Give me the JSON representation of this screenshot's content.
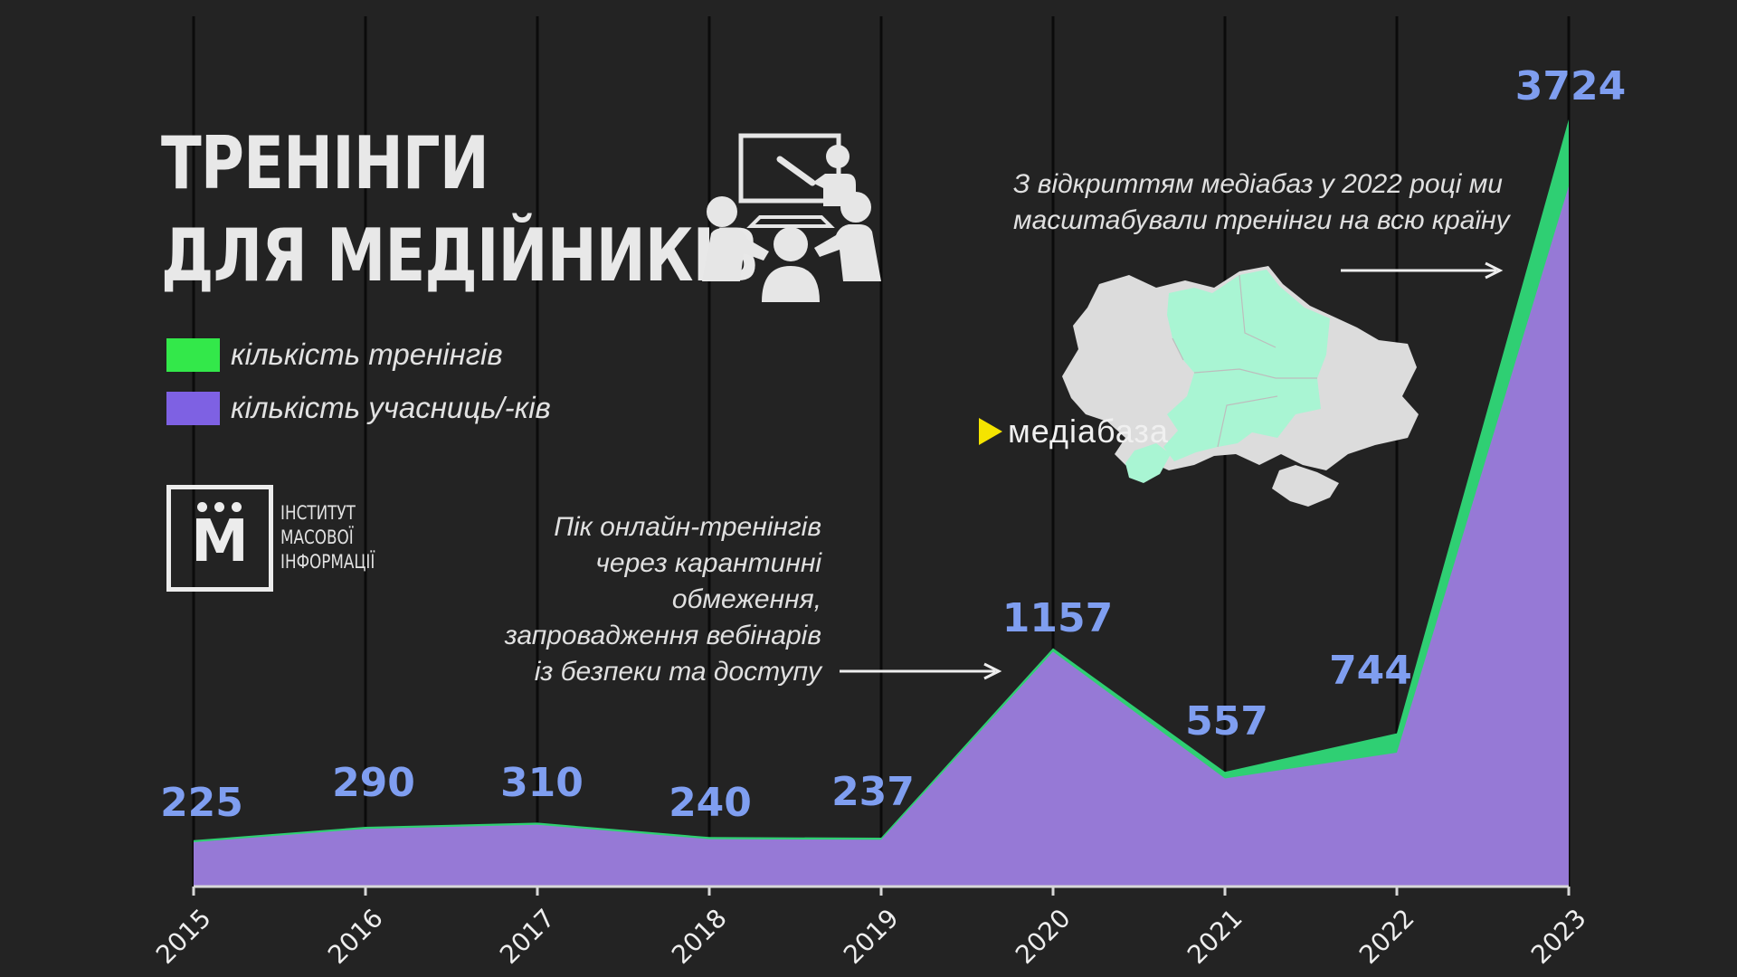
{
  "title": {
    "line1": "ТРЕНІНГИ",
    "line2": "ДЛЯ МЕДІЙНИКІВ"
  },
  "legend": [
    {
      "label": "кількість тренінгів",
      "color": "#33e84a"
    },
    {
      "label": "кількість учасниць/-ків",
      "color": "#7e61e3"
    }
  ],
  "logo": {
    "letter": "М",
    "lines": [
      "ІНСТИТУТ",
      "МАСОВОЇ",
      "ІНФОРМАЦІЇ"
    ]
  },
  "annotations": {
    "peak": [
      "Пік онлайн-тренінгів",
      "через карантинні",
      "обмеження,",
      "запровадження вебінарів",
      "із безпеки та доступу"
    ],
    "mediabase": [
      "З відкриттям медіабаз у 2022 році ми",
      "масштабували тренінги на всю країну"
    ]
  },
  "mediabaza_label": "медіабаза",
  "icons": {
    "training": "presentation-training-icon",
    "map": "ukraine-map-icon",
    "arrow": "arrow-right-icon"
  },
  "colors": {
    "background": "#232323",
    "area_participants": "#9679d6",
    "area_trainings": "#2fcf73",
    "value_labels": "#7f9ef0",
    "map_highlight": "#a9f5d3",
    "map_base": "#dcdcdc"
  },
  "chart_data": {
    "type": "area",
    "x": [
      "2015",
      "2016",
      "2017",
      "2018",
      "2019",
      "2020",
      "2021",
      "2022",
      "2023"
    ],
    "data_labels": [
      "225",
      "290",
      "310",
      "240",
      "237",
      "1157",
      "557",
      "744",
      "3724"
    ],
    "series": [
      {
        "name": "кількість учасниць/-ків",
        "values": [
          215,
          280,
          300,
          230,
          227,
          1140,
          525,
          650,
          3400
        ]
      },
      {
        "name": "кількість тренінгів",
        "values": [
          10,
          10,
          10,
          10,
          10,
          17,
          32,
          94,
          324
        ]
      }
    ],
    "ylim": [
      0,
      3724
    ],
    "grid": "vertical",
    "legend_position": "top-left"
  }
}
